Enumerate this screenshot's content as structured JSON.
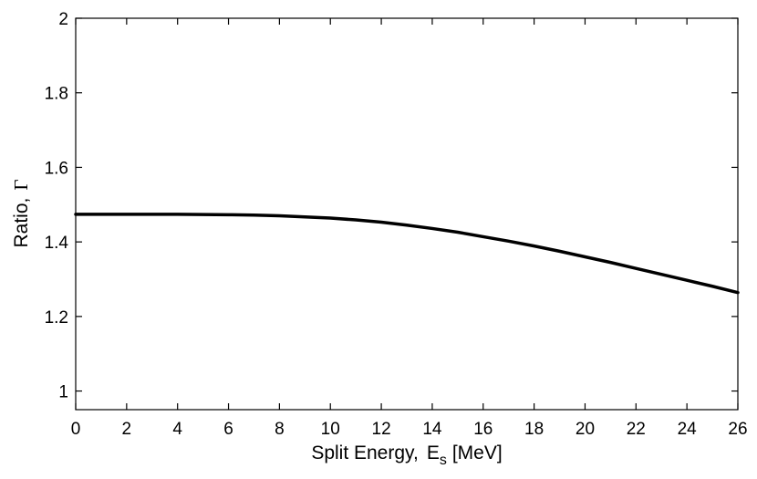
{
  "chart_data": {
    "type": "line",
    "title": "",
    "xlabel": "Split Energy,",
    "xlabel_symbol": "E",
    "xlabel_subscript": "s",
    "xlabel_unit": "[MeV]",
    "ylabel": "Ratio,",
    "ylabel_symbol": "Γ",
    "xlim": [
      0,
      26
    ],
    "ylim": [
      0.95,
      2
    ],
    "xticks": [
      0,
      2,
      4,
      6,
      8,
      10,
      12,
      14,
      16,
      18,
      20,
      22,
      24,
      26
    ],
    "yticks": [
      1,
      1.2,
      1.4,
      1.6,
      1.8,
      2
    ],
    "ytick_labels": [
      "1",
      "1.2",
      "1.4",
      "1.6",
      "1.8",
      "2"
    ],
    "grid": false,
    "line_color": "#000000",
    "series": [
      {
        "x": [
          0,
          2,
          4,
          6,
          7,
          8,
          9,
          10,
          11,
          12,
          13,
          14,
          15,
          16,
          17,
          18,
          19,
          20,
          21,
          22,
          23,
          24,
          25,
          26
        ],
        "y": [
          1.474,
          1.474,
          1.474,
          1.473,
          1.472,
          1.47,
          1.467,
          1.464,
          1.459,
          1.453,
          1.445,
          1.436,
          1.426,
          1.414,
          1.402,
          1.389,
          1.375,
          1.36,
          1.345,
          1.329,
          1.313,
          1.297,
          1.281,
          1.264
        ]
      }
    ]
  }
}
